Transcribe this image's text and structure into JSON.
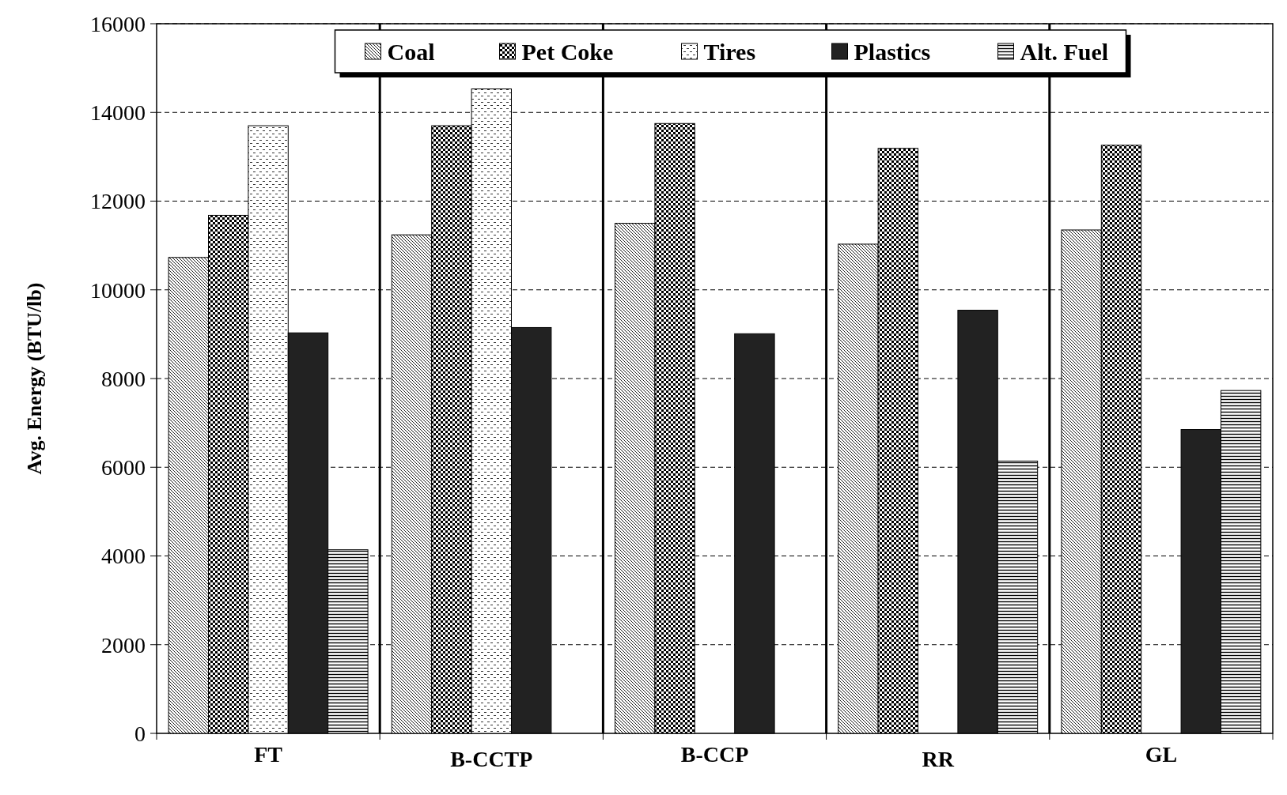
{
  "chart_data": {
    "type": "bar",
    "ylabel": "Avg. Energy (BTU/lb)",
    "categories": [
      "FT",
      "B-CCTP",
      "B-CCP",
      "RR",
      "GL"
    ],
    "series": [
      {
        "name": "Coal",
        "color": "#000000",
        "values": [
          10730,
          11240,
          11500,
          11030,
          11350
        ]
      },
      {
        "name": "Pet Coke",
        "color": "#000000",
        "values": [
          11680,
          13700,
          13750,
          13190,
          13260
        ]
      },
      {
        "name": "Tires",
        "color": "#000000",
        "values": [
          13700,
          14530,
          null,
          null,
          null
        ]
      },
      {
        "name": "Plastics",
        "color": "#222222",
        "values": [
          9030,
          9150,
          9010,
          9540,
          6850
        ]
      },
      {
        "name": "Alt. Fuel",
        "color": "#000000",
        "values": [
          4140,
          null,
          null,
          6140,
          7730
        ]
      }
    ],
    "ylim": [
      0,
      16000
    ],
    "yticks": [
      0,
      2000,
      4000,
      6000,
      8000,
      10000,
      12000,
      14000,
      16000
    ],
    "grid": "y",
    "legend": "top"
  }
}
